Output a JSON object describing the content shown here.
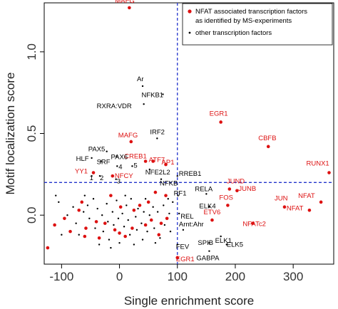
{
  "chart_data": {
    "type": "scatter",
    "xlabel": "Single enrichment score",
    "ylabel": "Motif localization score",
    "xlim": [
      -130,
      370
    ],
    "ylim": [
      -0.3,
      1.3
    ],
    "xticks": [
      -100,
      0,
      100,
      200,
      300
    ],
    "yticks": [
      0.0,
      0.5,
      1.0
    ],
    "xtick_labels": [
      "-100",
      "0",
      "100",
      "200",
      "300"
    ],
    "ytick_labels": [
      "0.0",
      "0.5",
      "1.0"
    ],
    "threshold_lines": {
      "x": 100,
      "y": 0.2,
      "color": "#2233cc",
      "style": "dashed"
    },
    "grid": false,
    "legend": {
      "position": "top-right",
      "entries": [
        {
          "label": "NFAT associated transcription factors\nas identified by MS-experiments",
          "color": "#dd1111"
        },
        {
          "label": "other transcription factors",
          "color": "#000000"
        }
      ]
    },
    "colors": {
      "nfat": "#dd1111",
      "other": "#000000",
      "threshold": "#2233cc"
    },
    "series": [
      {
        "name": "NFAT associated transcription factors as identified by MS-experiments",
        "color": "#dd1111",
        "points": [
          {
            "x": 17,
            "y": 1.27,
            "label": "MAFG"
          },
          {
            "x": 175,
            "y": 0.57,
            "label": "EGR1"
          },
          {
            "x": 257,
            "y": 0.42,
            "label": "CBFB"
          },
          {
            "x": 362,
            "y": 0.26,
            "label": "RUNX1"
          },
          {
            "x": 20,
            "y": 0.45,
            "label": "MAFG"
          },
          {
            "x": 58,
            "y": 0.33,
            "label": "ATF7"
          },
          {
            "x": 45,
            "y": 0.33,
            "label": "CREB1"
          },
          {
            "x": 80,
            "y": 0.31,
            "label": "AP1"
          },
          {
            "x": -45,
            "y": 0.26,
            "label": "YY1"
          },
          {
            "x": -12,
            "y": 0.24,
            "label": "NFCY"
          },
          {
            "x": 190,
            "y": 0.16,
            "label": "JUND"
          },
          {
            "x": 203,
            "y": 0.15,
            "label": "JUNB"
          },
          {
            "x": 187,
            "y": 0.06,
            "label": "FOS"
          },
          {
            "x": 285,
            "y": 0.05,
            "label": "JUN"
          },
          {
            "x": 348,
            "y": 0.08,
            "label": "NFAT"
          },
          {
            "x": 328,
            "y": 0.03,
            "label": "NFAT"
          },
          {
            "x": 160,
            "y": -0.03,
            "label": "ETV6"
          },
          {
            "x": 230,
            "y": -0.05,
            "label": "NFATc2"
          },
          {
            "x": 100,
            "y": -0.26,
            "label": "EGR1"
          },
          {
            "x": -112,
            "y": -0.06
          },
          {
            "x": -85,
            "y": -0.1
          },
          {
            "x": -58,
            "y": -0.08
          },
          {
            "x": -60,
            "y": -0.13
          },
          {
            "x": -40,
            "y": -0.04
          },
          {
            "x": -65,
            "y": 0.08
          },
          {
            "x": -35,
            "y": -0.14
          },
          {
            "x": -25,
            "y": -0.05
          },
          {
            "x": -15,
            "y": 0.12
          },
          {
            "x": -8,
            "y": -0.09
          },
          {
            "x": 0,
            "y": -0.11
          },
          {
            "x": 2,
            "y": 0.05
          },
          {
            "x": 22,
            "y": -0.08
          },
          {
            "x": 25,
            "y": 0.03
          },
          {
            "x": 45,
            "y": -0.06
          },
          {
            "x": 55,
            "y": -0.03
          },
          {
            "x": 62,
            "y": 0.14
          },
          {
            "x": 72,
            "y": -0.05
          },
          {
            "x": 80,
            "y": 0.12
          },
          {
            "x": 82,
            "y": -0.02
          },
          {
            "x": -70,
            "y": 0.03
          },
          {
            "x": -124,
            "y": -0.2
          },
          {
            "x": 10,
            "y": -0.13
          },
          {
            "x": 35,
            "y": 0.06
          },
          {
            "x": -95,
            "y": -0.02
          },
          {
            "x": 50,
            "y": 0.08
          },
          {
            "x": 68,
            "y": -0.12
          }
        ]
      },
      {
        "name": "other transcription factors",
        "color": "#000000",
        "points": [
          {
            "x": 40,
            "y": 0.79,
            "label": "Ar"
          },
          {
            "x": 75,
            "y": 0.74,
            "label": "NFKB1"
          },
          {
            "x": 42,
            "y": 0.68,
            "label": "RXRA:VDR"
          },
          {
            "x": 65,
            "y": 0.47,
            "label": "IRF2"
          },
          {
            "x": -22,
            "y": 0.39,
            "label": "PAX5"
          },
          {
            "x": -5,
            "y": 0.36,
            "label": "PAX6"
          },
          {
            "x": -48,
            "y": 0.35,
            "label": "HLF"
          },
          {
            "x": -32,
            "y": 0.33,
            "label": "SRF"
          },
          {
            "x": -4,
            "y": 0.3,
            "label": "4"
          },
          {
            "x": 22,
            "y": 0.3,
            "label": "5"
          },
          {
            "x": -48,
            "y": 0.24,
            "label": "1"
          },
          {
            "x": -34,
            "y": 0.24,
            "label": "2"
          },
          {
            "x": -6,
            "y": 0.22,
            "label": "3"
          },
          {
            "x": 52,
            "y": 0.28,
            "label": "NFE2L2"
          },
          {
            "x": 100,
            "y": 0.24,
            "label": "RREB1"
          },
          {
            "x": 72,
            "y": 0.22,
            "label": "NFKB"
          },
          {
            "x": 101,
            "y": 0.12,
            "label": "RF1"
          },
          {
            "x": 150,
            "y": 0.13,
            "label": "RELA"
          },
          {
            "x": 155,
            "y": 0.05,
            "label": "ELK4"
          },
          {
            "x": 103,
            "y": 0.01,
            "label": "REL"
          },
          {
            "x": 110,
            "y": -0.09,
            "label": "Arnt:Ahr"
          },
          {
            "x": 100,
            "y": -0.18,
            "label": "FEV"
          },
          {
            "x": 155,
            "y": -0.17,
            "label": "SPIB"
          },
          {
            "x": 175,
            "y": -0.13,
            "label": "ELK1"
          },
          {
            "x": 185,
            "y": -0.18,
            "label": "ELK5"
          },
          {
            "x": 155,
            "y": -0.22,
            "label": "GABPA"
          },
          {
            "x": -105,
            "y": 0.08
          },
          {
            "x": -90,
            "y": 0.0
          },
          {
            "x": -80,
            "y": 0.05
          },
          {
            "x": -75,
            "y": -0.05
          },
          {
            "x": -70,
            "y": -0.12
          },
          {
            "x": -62,
            "y": 0.02
          },
          {
            "x": -55,
            "y": 0.06
          },
          {
            "x": -52,
            "y": -0.02
          },
          {
            "x": -45,
            "y": 0.1
          },
          {
            "x": -42,
            "y": -0.08
          },
          {
            "x": -38,
            "y": 0.04
          },
          {
            "x": -30,
            "y": 0.0
          },
          {
            "x": -28,
            "y": -0.1
          },
          {
            "x": -22,
            "y": 0.07
          },
          {
            "x": -20,
            "y": -0.04
          },
          {
            "x": -18,
            "y": -0.15
          },
          {
            "x": -12,
            "y": 0.02
          },
          {
            "x": -10,
            "y": -0.06
          },
          {
            "x": -5,
            "y": 0.09
          },
          {
            "x": -2,
            "y": -0.02
          },
          {
            "x": 0,
            "y": -0.17
          },
          {
            "x": 5,
            "y": 0.01
          },
          {
            "x": 8,
            "y": -0.07
          },
          {
            "x": 12,
            "y": 0.06
          },
          {
            "x": 15,
            "y": -0.03
          },
          {
            "x": 18,
            "y": -0.12
          },
          {
            "x": 20,
            "y": 0.1
          },
          {
            "x": 28,
            "y": -0.01
          },
          {
            "x": 30,
            "y": -0.09
          },
          {
            "x": 32,
            "y": 0.04
          },
          {
            "x": 38,
            "y": -0.05
          },
          {
            "x": 40,
            "y": -0.15
          },
          {
            "x": 42,
            "y": 0.02
          },
          {
            "x": 48,
            "y": -0.1
          },
          {
            "x": 52,
            "y": 0.0
          },
          {
            "x": 58,
            "y": 0.05
          },
          {
            "x": 60,
            "y": -0.08
          },
          {
            "x": 66,
            "y": 0.02
          },
          {
            "x": 70,
            "y": -0.14
          },
          {
            "x": 76,
            "y": 0.06
          },
          {
            "x": 78,
            "y": -0.06
          },
          {
            "x": 86,
            "y": 0.01
          },
          {
            "x": 88,
            "y": -0.1
          },
          {
            "x": 92,
            "y": 0.08
          },
          {
            "x": -110,
            "y": 0.12
          },
          {
            "x": -100,
            "y": -0.12
          },
          {
            "x": -15,
            "y": -0.2
          },
          {
            "x": 25,
            "y": -0.18
          },
          {
            "x": 62,
            "y": -0.17
          },
          {
            "x": -60,
            "y": 0.12
          },
          {
            "x": 10,
            "y": 0.12
          },
          {
            "x": 45,
            "y": 0.1
          },
          {
            "x": -35,
            "y": -0.18
          },
          {
            "x": 84,
            "y": 0.1
          }
        ]
      }
    ]
  }
}
